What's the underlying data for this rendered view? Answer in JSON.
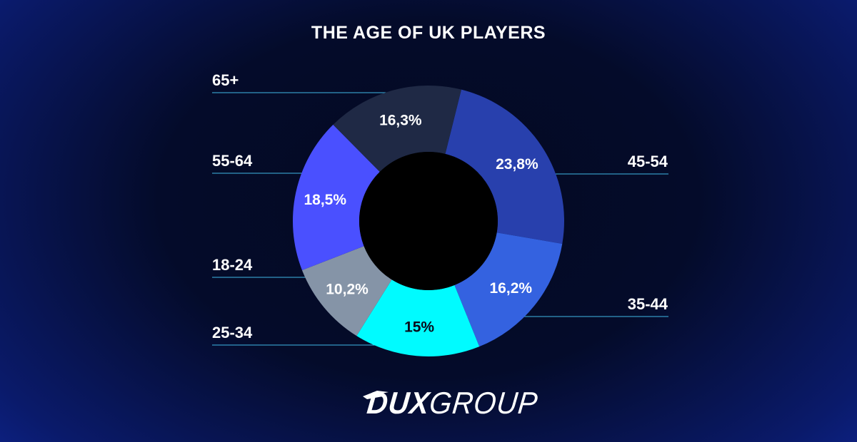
{
  "chart_data": {
    "type": "pie",
    "title": "THE AGE OF UK PLAYERS",
    "donut": true,
    "slices": [
      {
        "label": "45-54",
        "value": 23.8,
        "value_label": "23,8%",
        "color": "#2840ad"
      },
      {
        "label": "35-44",
        "value": 16.2,
        "value_label": "16,2%",
        "color": "#3462e0"
      },
      {
        "label": "25-34",
        "value": 15.0,
        "value_label": "15%",
        "color": "#00fbff"
      },
      {
        "label": "18-24",
        "value": 10.2,
        "value_label": "10,2%",
        "color": "#8594a7"
      },
      {
        "label": "55-64",
        "value": 18.5,
        "value_label": "18,5%",
        "color": "#4a50ff"
      },
      {
        "label": "65+",
        "value": 16.3,
        "value_label": "16,3%",
        "color": "#1f2945"
      }
    ],
    "label_line_color": "#3fb8e6"
  },
  "brand": {
    "logo_bold": "DUX",
    "logo_light": "GROUP"
  }
}
